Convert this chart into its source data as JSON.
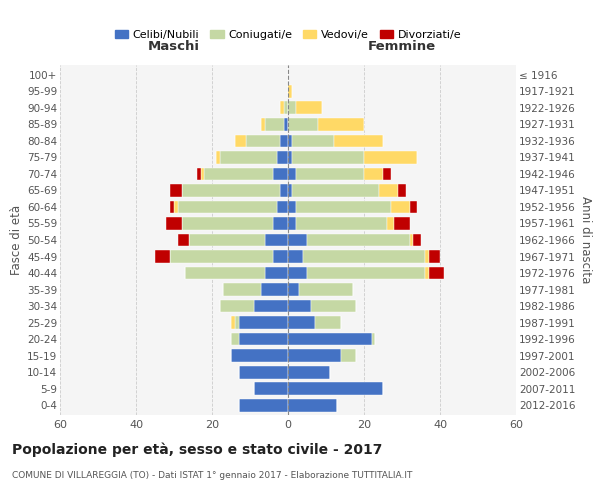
{
  "age_groups": [
    "0-4",
    "5-9",
    "10-14",
    "15-19",
    "20-24",
    "25-29",
    "30-34",
    "35-39",
    "40-44",
    "45-49",
    "50-54",
    "55-59",
    "60-64",
    "65-69",
    "70-74",
    "75-79",
    "80-84",
    "85-89",
    "90-94",
    "95-99",
    "100+"
  ],
  "birth_years": [
    "2012-2016",
    "2007-2011",
    "2002-2006",
    "1997-2001",
    "1992-1996",
    "1987-1991",
    "1982-1986",
    "1977-1981",
    "1972-1976",
    "1967-1971",
    "1962-1966",
    "1957-1961",
    "1952-1956",
    "1947-1951",
    "1942-1946",
    "1937-1941",
    "1932-1936",
    "1927-1931",
    "1922-1926",
    "1917-1921",
    "≤ 1916"
  ],
  "male": {
    "celibi": [
      13,
      9,
      13,
      15,
      13,
      13,
      9,
      7,
      6,
      4,
      6,
      4,
      3,
      2,
      4,
      3,
      2,
      1,
      0,
      0,
      0
    ],
    "coniugati": [
      0,
      0,
      0,
      0,
      2,
      1,
      9,
      10,
      21,
      27,
      20,
      24,
      26,
      26,
      18,
      15,
      9,
      5,
      1,
      0,
      0
    ],
    "vedovi": [
      0,
      0,
      0,
      0,
      0,
      1,
      0,
      0,
      0,
      0,
      0,
      0,
      1,
      0,
      1,
      1,
      3,
      1,
      1,
      0,
      0
    ],
    "divorziati": [
      0,
      0,
      0,
      0,
      0,
      0,
      0,
      0,
      0,
      4,
      3,
      4,
      1,
      3,
      1,
      0,
      0,
      0,
      0,
      0,
      0
    ]
  },
  "female": {
    "nubili": [
      13,
      25,
      11,
      14,
      22,
      7,
      6,
      3,
      5,
      4,
      5,
      2,
      2,
      1,
      2,
      1,
      1,
      0,
      0,
      0,
      0
    ],
    "coniugate": [
      0,
      0,
      0,
      4,
      1,
      7,
      12,
      14,
      31,
      32,
      27,
      24,
      25,
      23,
      18,
      19,
      11,
      8,
      2,
      0,
      0
    ],
    "vedove": [
      0,
      0,
      0,
      0,
      0,
      0,
      0,
      0,
      1,
      1,
      1,
      2,
      5,
      5,
      5,
      14,
      13,
      12,
      7,
      1,
      0
    ],
    "divorziate": [
      0,
      0,
      0,
      0,
      0,
      0,
      0,
      0,
      4,
      3,
      2,
      4,
      2,
      2,
      2,
      0,
      0,
      0,
      0,
      0,
      0
    ]
  },
  "colors": {
    "celibi_nubili": "#4472C4",
    "coniugati": "#C5D8A4",
    "vedovi": "#FFD966",
    "divorziati": "#C00000"
  },
  "title": "Popolazione per età, sesso e stato civile - 2017",
  "subtitle": "COMUNE DI VILLAREGGIA (TO) - Dati ISTAT 1° gennaio 2017 - Elaborazione TUTTITALIA.IT",
  "xlabel_left": "Maschi",
  "xlabel_right": "Femmine",
  "ylabel_left": "Fasce di età",
  "ylabel_right": "Anni di nascita",
  "xlim": 60,
  "legend_labels": [
    "Celibi/Nubili",
    "Coniugati/e",
    "Vedovi/e",
    "Divorziati/e"
  ],
  "background_color": "#ffffff",
  "plot_bg_color": "#f5f5f5",
  "grid_color": "#cccccc"
}
